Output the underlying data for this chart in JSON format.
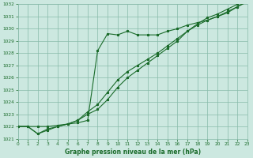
{
  "title": "Graphe pression niveau de la mer (hPa)",
  "bg_color": "#cce8e0",
  "grid_color": "#88bbaa",
  "line_color": "#1a6b2a",
  "x_min": 0,
  "x_max": 23,
  "y_min": 1021,
  "y_max": 1032,
  "line1_x": [
    0,
    1,
    2,
    3,
    4,
    5,
    6,
    7,
    8,
    9,
    10,
    11,
    12,
    13,
    14,
    15,
    16,
    17,
    18,
    19,
    20,
    21,
    22,
    23
  ],
  "line1_y": [
    1022,
    1022,
    1022,
    1022,
    1022.1,
    1022.2,
    1022.3,
    1022.5,
    1028.2,
    1029.6,
    1029.5,
    1029.8,
    1029.5,
    1029.5,
    1029.5,
    1029.8,
    1030.0,
    1030.3,
    1030.5,
    1030.7,
    1031.0,
    1031.3,
    1031.8,
    1032.2
  ],
  "line2_x": [
    0,
    1,
    2,
    3,
    4,
    5,
    6,
    7,
    8,
    9,
    10,
    11,
    12,
    13,
    14,
    15,
    16,
    17,
    18,
    19,
    20,
    21,
    22,
    23
  ],
  "line2_y": [
    1022,
    1022,
    1021.4,
    1021.8,
    1022.0,
    1022.2,
    1022.5,
    1023.2,
    1023.8,
    1024.8,
    1025.8,
    1026.5,
    1027.0,
    1027.5,
    1028.0,
    1028.6,
    1029.2,
    1029.8,
    1030.3,
    1030.7,
    1031.0,
    1031.4,
    1031.8,
    1032.3
  ],
  "line3_x": [
    0,
    1,
    2,
    3,
    4,
    5,
    6,
    7,
    8,
    9,
    10,
    11,
    12,
    13,
    14,
    15,
    16,
    17,
    18,
    19,
    20,
    21,
    22,
    23
  ],
  "line3_y": [
    1022,
    1022,
    1021.4,
    1021.7,
    1022.0,
    1022.2,
    1022.5,
    1023.0,
    1023.4,
    1024.2,
    1025.2,
    1026.0,
    1026.6,
    1027.2,
    1027.8,
    1028.4,
    1029.0,
    1029.8,
    1030.4,
    1030.9,
    1031.2,
    1031.6,
    1032.0,
    1032.3
  ]
}
